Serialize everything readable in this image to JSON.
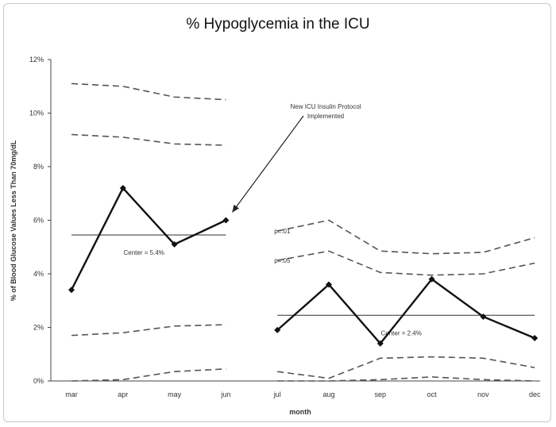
{
  "chart_data": {
    "type": "line",
    "title": "% Hypoglycemia in the ICU",
    "xlabel": "month",
    "ylabel": "% of Blood Glucose Values Less Than 70mg/dL",
    "categories": [
      "mar",
      "apr",
      "may",
      "jun",
      "jul",
      "aug",
      "sep",
      "oct",
      "nov",
      "dec"
    ],
    "ylim": [
      0,
      12
    ],
    "y_ticks": [
      "0%",
      "2%",
      "4%",
      "6%",
      "8%",
      "10%",
      "12%"
    ],
    "series": [
      {
        "values": [
          3.4,
          7.2,
          5.1,
          6.0,
          null,
          null,
          null,
          null,
          null,
          null
        ]
      },
      {
        "values": [
          null,
          null,
          null,
          null,
          1.9,
          3.6,
          1.4,
          3.8,
          2.4,
          1.6
        ]
      }
    ],
    "center_lines": [
      {
        "label": "Center = 5.4%",
        "value": 5.45,
        "from": "mar",
        "to": "jun"
      },
      {
        "label": "Center = 2.4%",
        "value": 2.45,
        "from": "jul",
        "to": "dec"
      }
    ],
    "limit_lines": [
      {
        "values": [
          11.1,
          11.0,
          10.6,
          10.5,
          null,
          null,
          null,
          null,
          null,
          null
        ]
      },
      {
        "values": [
          9.2,
          9.1,
          8.85,
          8.8,
          null,
          null,
          null,
          null,
          null,
          null
        ]
      },
      {
        "values": [
          1.7,
          1.8,
          2.05,
          2.1,
          null,
          null,
          null,
          null,
          null,
          null
        ]
      },
      {
        "values": [
          0.0,
          0.05,
          0.35,
          0.45,
          null,
          null,
          null,
          null,
          null,
          null
        ]
      },
      {
        "label": "p=.01",
        "values": [
          null,
          null,
          null,
          null,
          5.6,
          6.0,
          4.85,
          4.75,
          4.8,
          5.35
        ]
      },
      {
        "label": "p=.05",
        "values": [
          null,
          null,
          null,
          null,
          4.5,
          4.85,
          4.05,
          3.95,
          4.0,
          4.4
        ]
      },
      {
        "values": [
          null,
          null,
          null,
          null,
          0.35,
          0.1,
          0.85,
          0.9,
          0.85,
          0.5
        ]
      },
      {
        "values": [
          null,
          null,
          null,
          null,
          0.0,
          0.0,
          0.05,
          0.15,
          0.05,
          0.0
        ]
      }
    ],
    "annotation": {
      "line1": "New ICU Insulin Protocol",
      "line2": "Implemented",
      "points_to": {
        "category": "jun",
        "value": 6.0
      }
    },
    "grid": false,
    "legend": "none"
  }
}
